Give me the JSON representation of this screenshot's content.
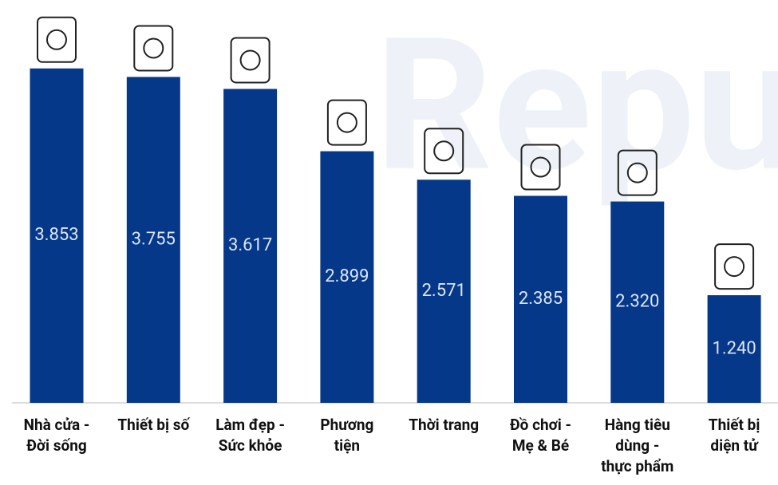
{
  "chart_data": {
    "type": "bar",
    "watermark": "Repu",
    "categories": [
      "Nhà cửa -\nĐời sống",
      "Thiết bị số",
      "Làm đẹp -\nSức khỏe",
      "Phương\ntiện",
      "Thời trang",
      "Đồ chơi -\nMẹ & Bé",
      "Hàng tiêu\ndùng -\nthực phẩm",
      "Thiết bị\ndiện tử"
    ],
    "values": [
      3853,
      3755,
      3617,
      2899,
      2571,
      2385,
      2320,
      1240
    ],
    "value_labels": [
      "3.853",
      "3.755",
      "3.617",
      "2.899",
      "2.571",
      "2.385",
      "2.320",
      "1.240"
    ],
    "color": "#06388a"
  }
}
